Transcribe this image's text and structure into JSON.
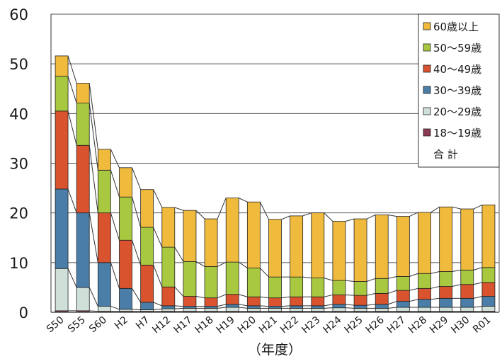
{
  "chart_data": {
    "type": "bar",
    "stacked": true,
    "xlabel": "（年度）",
    "ylabel": "",
    "ylim": [
      0,
      60
    ],
    "yticks": [
      0,
      10,
      20,
      30,
      40,
      50,
      60
    ],
    "grid": true,
    "legend_position": "top-right",
    "categories": [
      "S50",
      "S55",
      "S60",
      "H2",
      "H7",
      "H12",
      "H17",
      "H18",
      "H19",
      "H20",
      "H21",
      "H22",
      "H23",
      "H24",
      "H25",
      "H26",
      "H27",
      "H28",
      "H29",
      "H30",
      "R01"
    ],
    "series": [
      {
        "name": "18～19歳",
        "color": "#8a3a52",
        "values": [
          0.3,
          0.3,
          0.2,
          0.2,
          0.2,
          0.2,
          0.2,
          0.2,
          0.2,
          0.2,
          0.2,
          0.2,
          0.2,
          0.2,
          0.2,
          0.2,
          0.2,
          0.2,
          0.2,
          0.2,
          0.2
        ]
      },
      {
        "name": "20～29歳",
        "color": "#cfe0d8",
        "values": [
          8.5,
          4.7,
          1.0,
          0.4,
          0.3,
          0.5,
          0.6,
          0.6,
          0.8,
          0.6,
          0.6,
          0.6,
          0.6,
          0.7,
          0.6,
          0.6,
          0.8,
          0.8,
          0.8,
          0.8,
          1.0
        ]
      },
      {
        "name": "30～39歳",
        "color": "#4a7ea8",
        "values": [
          16.0,
          15.0,
          8.8,
          4.2,
          1.5,
          0.6,
          0.4,
          0.4,
          0.6,
          0.5,
          0.4,
          0.5,
          0.5,
          0.7,
          0.6,
          0.8,
          1.2,
          1.6,
          1.8,
          1.8,
          2.0
        ]
      },
      {
        "name": "40～49歳",
        "color": "#d8532e",
        "values": [
          15.7,
          13.6,
          10.0,
          9.7,
          7.5,
          3.8,
          2.0,
          1.7,
          2.0,
          1.8,
          1.7,
          1.8,
          1.8,
          1.9,
          2.0,
          2.2,
          2.2,
          2.2,
          2.4,
          2.8,
          2.8
        ]
      },
      {
        "name": "50～59歳",
        "color": "#a8c840",
        "values": [
          7.0,
          8.5,
          8.6,
          8.7,
          7.6,
          8.0,
          7.0,
          6.3,
          6.5,
          5.8,
          4.2,
          4.0,
          3.8,
          2.9,
          2.8,
          3.0,
          2.8,
          3.0,
          3.0,
          2.9,
          3.0
        ]
      },
      {
        "name": "60歳以上",
        "color": "#f0ba3c",
        "values": [
          4.1,
          4.0,
          4.2,
          5.9,
          7.6,
          8.0,
          10.3,
          9.6,
          12.9,
          13.3,
          11.6,
          12.3,
          13.1,
          11.9,
          12.6,
          12.8,
          12.1,
          12.3,
          13.0,
          12.3,
          12.6
        ]
      }
    ],
    "total": {
      "name": "合 計",
      "values": [
        51.6,
        46.1,
        32.8,
        29.1,
        24.7,
        21.1,
        20.5,
        18.8,
        23.0,
        22.2,
        18.7,
        19.4,
        20.0,
        18.3,
        18.8,
        19.6,
        19.3,
        20.1,
        21.2,
        20.8,
        21.6
      ]
    }
  }
}
